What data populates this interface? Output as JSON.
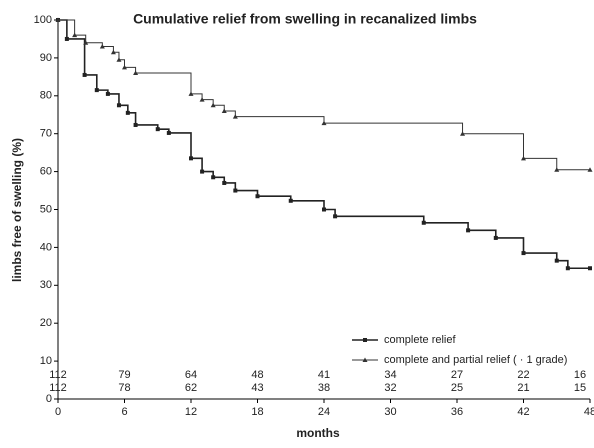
{
  "chart_data": {
    "type": "step",
    "title": "Cumulative relief from swelling in recanalized limbs",
    "x_label": "months",
    "y_label": "limbs free of swelling (%)",
    "xlim": [
      0,
      48
    ],
    "xticks": [
      0,
      6,
      12,
      18,
      24,
      30,
      36,
      42,
      48
    ],
    "ylim": [
      0,
      100
    ],
    "yticks": [
      0,
      10,
      20,
      30,
      40,
      50,
      60,
      70,
      80,
      90,
      100
    ],
    "series": [
      {
        "name": "complete relief",
        "color": "#222222",
        "marker": "square",
        "x": [
          0,
          0.8,
          2.4,
          3.5,
          4.5,
          5.5,
          6.3,
          7,
          9,
          10,
          12,
          13,
          14,
          15,
          16,
          18,
          21,
          24,
          25,
          33,
          37,
          39.5,
          42,
          45,
          46,
          48
        ],
        "values": [
          100,
          95,
          85.5,
          81.5,
          80.5,
          77.5,
          75.5,
          72.3,
          71.2,
          70.2,
          63.5,
          60,
          58.5,
          57,
          55,
          53.5,
          52.3,
          50,
          48.2,
          46.5,
          44.5,
          42.5,
          38.5,
          36.5,
          34.5,
          34.5
        ]
      },
      {
        "name": "complete and partial relief ( · 1 grade)",
        "color": "#333333",
        "marker": "triangle",
        "x": [
          0,
          1.5,
          2.5,
          4,
          5,
          5.5,
          6,
          7,
          12,
          13,
          14,
          15,
          16,
          24,
          36.5,
          42,
          45,
          48
        ],
        "values": [
          100,
          96,
          94,
          93,
          91.5,
          89.5,
          87.5,
          86,
          80.5,
          79,
          77.5,
          76,
          74.5,
          72.8,
          70,
          63.5,
          60.5,
          60.5
        ]
      }
    ],
    "at_risk": [
      [
        112,
        79,
        64,
        48,
        41,
        34,
        27,
        22,
        16
      ],
      [
        112,
        78,
        62,
        43,
        38,
        32,
        25,
        21,
        15
      ]
    ]
  }
}
